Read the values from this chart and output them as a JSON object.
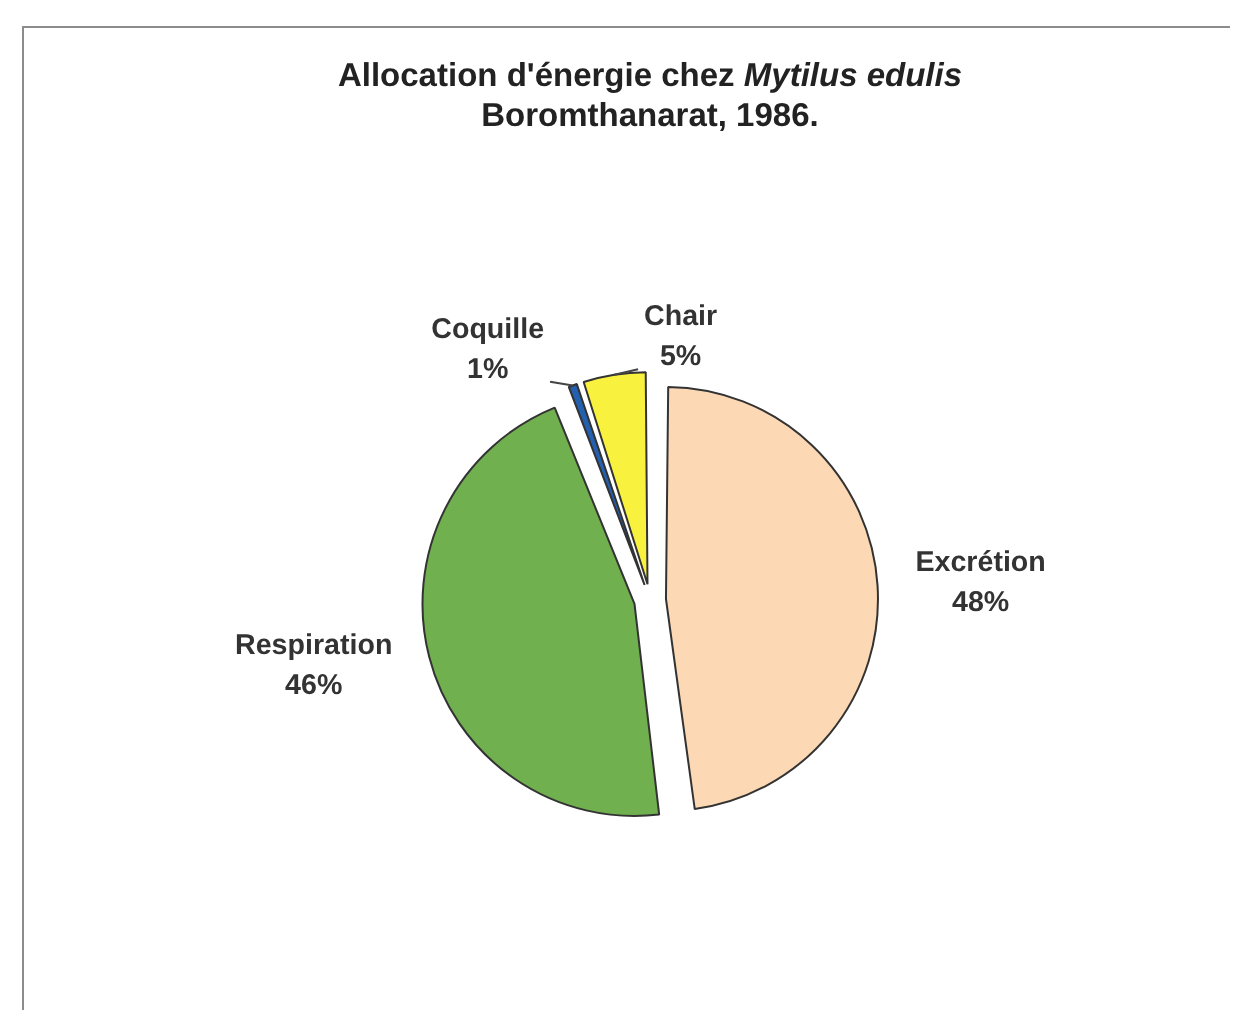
{
  "chart_data": {
    "type": "pie",
    "title": "Allocation d'énergie chez Mytilus edulis",
    "subtitle": "Boromthanarat, 1986.",
    "categories": [
      "Excrétion",
      "Respiration",
      "Coquille",
      "Chair"
    ],
    "values": [
      48,
      46,
      1,
      5
    ],
    "colors": [
      "#fcd9b4",
      "#70b04e",
      "#2460b0",
      "#f8f23e"
    ],
    "value_labels": [
      "48%",
      "46%",
      "1%",
      "5%"
    ]
  }
}
